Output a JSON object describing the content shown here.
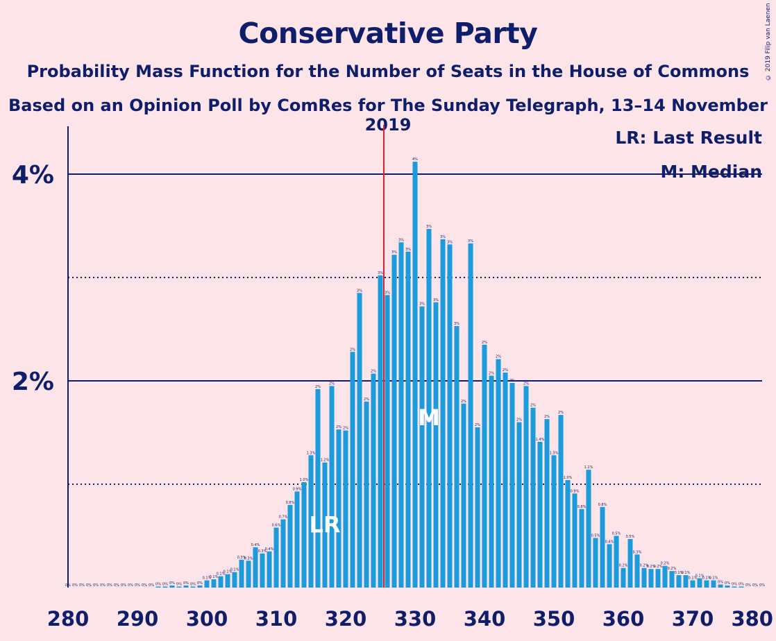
{
  "chart_data": {
    "type": "bar",
    "title": "Conservative Party",
    "subtitle1": "Probability Mass Function for the Number of Seats in the House of Commons",
    "subtitle2": "Based on an Opinion Poll by ComRes for The Sunday Telegraph, 13–14 November 2019",
    "copyright": "© 2019 Filip van Laenen",
    "legend": {
      "last_result": "LR: Last Result",
      "median": "M: Median",
      "placement": "top-right"
    },
    "xlim": [
      280,
      380
    ],
    "ylim": [
      0,
      4.5
    ],
    "x_ticks": [
      280,
      290,
      300,
      310,
      320,
      330,
      340,
      350,
      360,
      370,
      380
    ],
    "y_ticks": [
      {
        "value": 2,
        "label": "2%"
      },
      {
        "value": 4,
        "label": "4%"
      }
    ],
    "dotted_gridlines": [
      1,
      3
    ],
    "majority_line": 326,
    "last_result": {
      "seat": 317,
      "label": "LR"
    },
    "median": {
      "seat": 332,
      "label": "M"
    },
    "colors": {
      "bar": "#1a9bdc",
      "axis": "#0e1e6b",
      "majority": "#e5202e",
      "background": "#fde4e8"
    },
    "bars": [
      {
        "seat": 280,
        "value": 0.0,
        "label": "0%"
      },
      {
        "seat": 281,
        "value": 0.0,
        "label": "0%"
      },
      {
        "seat": 282,
        "value": 0.0,
        "label": "0%"
      },
      {
        "seat": 283,
        "value": 0.0,
        "label": "0%"
      },
      {
        "seat": 284,
        "value": 0.0,
        "label": "0%"
      },
      {
        "seat": 285,
        "value": 0.0,
        "label": "0%"
      },
      {
        "seat": 286,
        "value": 0.0,
        "label": "0%"
      },
      {
        "seat": 287,
        "value": 0.0,
        "label": "0%"
      },
      {
        "seat": 288,
        "value": 0.0,
        "label": "0%"
      },
      {
        "seat": 289,
        "value": 0.0,
        "label": "0%"
      },
      {
        "seat": 290,
        "value": 0.0,
        "label": "0%"
      },
      {
        "seat": 291,
        "value": 0.0,
        "label": "0%"
      },
      {
        "seat": 292,
        "value": 0.0,
        "label": "0%"
      },
      {
        "seat": 293,
        "value": 0.01,
        "label": "0%"
      },
      {
        "seat": 294,
        "value": 0.01,
        "label": "0%"
      },
      {
        "seat": 295,
        "value": 0.02,
        "label": "0%"
      },
      {
        "seat": 296,
        "value": 0.01,
        "label": "0%"
      },
      {
        "seat": 297,
        "value": 0.02,
        "label": "0%"
      },
      {
        "seat": 298,
        "value": 0.01,
        "label": "0%"
      },
      {
        "seat": 299,
        "value": 0.02,
        "label": "0%"
      },
      {
        "seat": 300,
        "value": 0.07,
        "label": "0.1%"
      },
      {
        "seat": 301,
        "value": 0.08,
        "label": "0.1%"
      },
      {
        "seat": 302,
        "value": 0.11,
        "label": "0.1%"
      },
      {
        "seat": 303,
        "value": 0.13,
        "label": "0.1%"
      },
      {
        "seat": 304,
        "value": 0.15,
        "label": "0.1%"
      },
      {
        "seat": 305,
        "value": 0.27,
        "label": "0.3%"
      },
      {
        "seat": 306,
        "value": 0.26,
        "label": "0.3%"
      },
      {
        "seat": 307,
        "value": 0.39,
        "label": "0.4%"
      },
      {
        "seat": 308,
        "value": 0.33,
        "label": "0.3%"
      },
      {
        "seat": 309,
        "value": 0.35,
        "label": "0.4%"
      },
      {
        "seat": 310,
        "value": 0.58,
        "label": "0.6%"
      },
      {
        "seat": 311,
        "value": 0.66,
        "label": "0.7%"
      },
      {
        "seat": 312,
        "value": 0.8,
        "label": "0.8%"
      },
      {
        "seat": 313,
        "value": 0.93,
        "label": "0.9%"
      },
      {
        "seat": 314,
        "value": 1.02,
        "label": "1.0%"
      },
      {
        "seat": 315,
        "value": 1.28,
        "label": "1.3%"
      },
      {
        "seat": 316,
        "value": 1.92,
        "label": "2%"
      },
      {
        "seat": 317,
        "value": 1.21,
        "label": "1.2%"
      },
      {
        "seat": 318,
        "value": 1.95,
        "label": "2%"
      },
      {
        "seat": 319,
        "value": 1.53,
        "label": "2%"
      },
      {
        "seat": 320,
        "value": 1.52,
        "label": "2%"
      },
      {
        "seat": 321,
        "value": 2.28,
        "label": "2%"
      },
      {
        "seat": 322,
        "value": 2.85,
        "label": "3%"
      },
      {
        "seat": 323,
        "value": 1.8,
        "label": "2%"
      },
      {
        "seat": 324,
        "value": 2.07,
        "label": "2%"
      },
      {
        "seat": 325,
        "value": 3.02,
        "label": "3%"
      },
      {
        "seat": 326,
        "value": 2.83,
        "label": "3%"
      },
      {
        "seat": 327,
        "value": 3.22,
        "label": "3%"
      },
      {
        "seat": 328,
        "value": 3.34,
        "label": "3%"
      },
      {
        "seat": 329,
        "value": 3.25,
        "label": "3%"
      },
      {
        "seat": 330,
        "value": 4.12,
        "label": "4%"
      },
      {
        "seat": 331,
        "value": 2.72,
        "label": "3%"
      },
      {
        "seat": 332,
        "value": 3.47,
        "label": "3%"
      },
      {
        "seat": 333,
        "value": 2.76,
        "label": "3%"
      },
      {
        "seat": 334,
        "value": 3.37,
        "label": "3%"
      },
      {
        "seat": 335,
        "value": 3.32,
        "label": "3%"
      },
      {
        "seat": 336,
        "value": 2.53,
        "label": "3%"
      },
      {
        "seat": 337,
        "value": 1.78,
        "label": "2%"
      },
      {
        "seat": 338,
        "value": 3.33,
        "label": "3%"
      },
      {
        "seat": 339,
        "value": 1.55,
        "label": "2%"
      },
      {
        "seat": 340,
        "value": 2.35,
        "label": "2%"
      },
      {
        "seat": 341,
        "value": 2.05,
        "label": "2%"
      },
      {
        "seat": 342,
        "value": 2.21,
        "label": "2%"
      },
      {
        "seat": 343,
        "value": 2.08,
        "label": "2%"
      },
      {
        "seat": 344,
        "value": 1.98,
        "label": "2%"
      },
      {
        "seat": 345,
        "value": 1.6,
        "label": "2%"
      },
      {
        "seat": 346,
        "value": 1.95,
        "label": "2%"
      },
      {
        "seat": 347,
        "value": 1.74,
        "label": "2%"
      },
      {
        "seat": 348,
        "value": 1.41,
        "label": "1.4%"
      },
      {
        "seat": 349,
        "value": 1.63,
        "label": "2%"
      },
      {
        "seat": 350,
        "value": 1.28,
        "label": "1.3%"
      },
      {
        "seat": 351,
        "value": 1.67,
        "label": "2%"
      },
      {
        "seat": 352,
        "value": 1.04,
        "label": "1.0%"
      },
      {
        "seat": 353,
        "value": 0.91,
        "label": "0.9%"
      },
      {
        "seat": 354,
        "value": 0.76,
        "label": "0.8%"
      },
      {
        "seat": 355,
        "value": 1.14,
        "label": "1.1%"
      },
      {
        "seat": 356,
        "value": 0.48,
        "label": "0.5%"
      },
      {
        "seat": 357,
        "value": 0.78,
        "label": "0.8%"
      },
      {
        "seat": 358,
        "value": 0.42,
        "label": "0.4%"
      },
      {
        "seat": 359,
        "value": 0.5,
        "label": "0.5%"
      },
      {
        "seat": 360,
        "value": 0.19,
        "label": "0.2%"
      },
      {
        "seat": 361,
        "value": 0.47,
        "label": "0.5%"
      },
      {
        "seat": 362,
        "value": 0.32,
        "label": "0.3%"
      },
      {
        "seat": 363,
        "value": 0.19,
        "label": "0.2%"
      },
      {
        "seat": 364,
        "value": 0.18,
        "label": "0.2%"
      },
      {
        "seat": 365,
        "value": 0.18,
        "label": "0.2%"
      },
      {
        "seat": 366,
        "value": 0.21,
        "label": "0.2%"
      },
      {
        "seat": 367,
        "value": 0.16,
        "label": "0.2%"
      },
      {
        "seat": 368,
        "value": 0.12,
        "label": "0.1%"
      },
      {
        "seat": 369,
        "value": 0.12,
        "label": "0.1%"
      },
      {
        "seat": 370,
        "value": 0.07,
        "label": "0.1%"
      },
      {
        "seat": 371,
        "value": 0.09,
        "label": "0.1%"
      },
      {
        "seat": 372,
        "value": 0.07,
        "label": "0.1%"
      },
      {
        "seat": 373,
        "value": 0.07,
        "label": "0.1%"
      },
      {
        "seat": 374,
        "value": 0.03,
        "label": "0%"
      },
      {
        "seat": 375,
        "value": 0.02,
        "label": "0%"
      },
      {
        "seat": 376,
        "value": 0.01,
        "label": "0%"
      },
      {
        "seat": 377,
        "value": 0.01,
        "label": "0%"
      },
      {
        "seat": 378,
        "value": 0.0,
        "label": "0%"
      },
      {
        "seat": 379,
        "value": 0.0,
        "label": "0%"
      },
      {
        "seat": 380,
        "value": 0.0,
        "label": "0%"
      }
    ]
  }
}
